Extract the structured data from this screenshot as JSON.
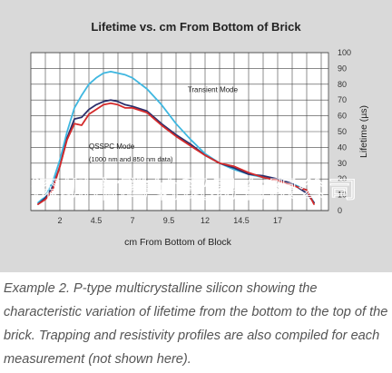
{
  "chart_data": {
    "type": "line",
    "title": "Lifetime vs. cm From Bottom of Brick",
    "xlabel": "cm From Bottom of Block",
    "ylabel": "Lifetime (µs)",
    "x_tick_labels": [
      "2",
      "4.5",
      "7",
      "9.5",
      "12",
      "14.5",
      "17"
    ],
    "x_ticks": [
      2,
      4.5,
      7,
      9.5,
      12,
      14.5,
      17
    ],
    "xlim": [
      0,
      20.5
    ],
    "ylim": [
      0,
      100
    ],
    "y_ticks": [
      0,
      10,
      20,
      30,
      40,
      50,
      60,
      70,
      80,
      90,
      100
    ],
    "y_axis_side": "right",
    "grid": true,
    "series": [
      {
        "label": "Transient Mode",
        "color": "#3fb7e0",
        "x": [
          0.5,
          1.0,
          1.5,
          2.0,
          2.5,
          3.0,
          3.5,
          4.0,
          4.5,
          5.0,
          5.5,
          6.0,
          6.5,
          7.0,
          8.0,
          9.0,
          10.0,
          11.0,
          12.0,
          13.0,
          14.0,
          15.0,
          16.0,
          17.0,
          18.0,
          19.0,
          19.5
        ],
        "y": [
          5,
          9,
          18,
          32,
          50,
          65,
          73,
          80,
          84,
          87,
          88,
          87,
          86,
          84,
          77,
          67,
          55,
          45,
          36,
          30,
          26,
          23,
          21,
          19,
          17,
          13,
          5
        ]
      },
      {
        "label": "QSSPC Mode (1000 nm)",
        "color": "#2b2f6b",
        "x": [
          0.5,
          1.0,
          1.5,
          2.0,
          2.5,
          3.0,
          3.5,
          4.0,
          4.5,
          5.0,
          5.5,
          6.0,
          6.5,
          7.0,
          8.0,
          9.0,
          10.0,
          11.0,
          12.0,
          13.0,
          14.0,
          15.0,
          16.0,
          17.0,
          18.0,
          19.0,
          19.5
        ],
        "y": [
          4,
          8,
          15,
          28,
          46,
          58,
          59,
          64,
          67,
          69,
          70,
          69,
          67,
          66,
          63,
          55,
          48,
          42,
          35,
          30,
          27,
          23,
          22,
          20,
          17,
          11,
          5
        ]
      },
      {
        "label": "QSSPC Mode (850 nm)",
        "color": "#d42a2a",
        "x": [
          0.5,
          1.0,
          1.5,
          2.0,
          2.5,
          3.0,
          3.5,
          4.0,
          4.5,
          5.0,
          5.5,
          6.0,
          6.5,
          7.0,
          8.0,
          9.0,
          10.0,
          11.0,
          12.0,
          13.0,
          14.0,
          15.0,
          16.0,
          17.0,
          18.0,
          19.0,
          19.5
        ],
        "y": [
          4,
          7,
          13,
          28,
          45,
          55,
          54,
          61,
          64,
          67,
          68,
          67,
          65,
          65,
          62,
          54,
          47,
          41,
          35,
          30,
          28,
          24,
          21,
          19,
          16,
          13,
          4
        ]
      }
    ],
    "annotations": [
      {
        "text": "Transient Mode",
        "x": 10.8,
        "y": 75
      },
      {
        "text": "QSSPC Mode",
        "x": 4.0,
        "y": 39
      },
      {
        "text": "(1000 nm and 850 nm data)",
        "x": 4.0,
        "y": 31
      }
    ]
  },
  "watermark": "深圳市腾纳贸易有限公司",
  "caption": "Example 2.  P-type multicrystalline silicon showing the characteristic variation of lifetime from the bottom to the top of the brick. Trapping and resistivity profiles are also compiled for each measurement (not shown here).",
  "colors": {
    "panel_background": "#d9d9d9",
    "plot_background": "#ffffff",
    "grid": "#444444",
    "caption_text": "#555555"
  }
}
